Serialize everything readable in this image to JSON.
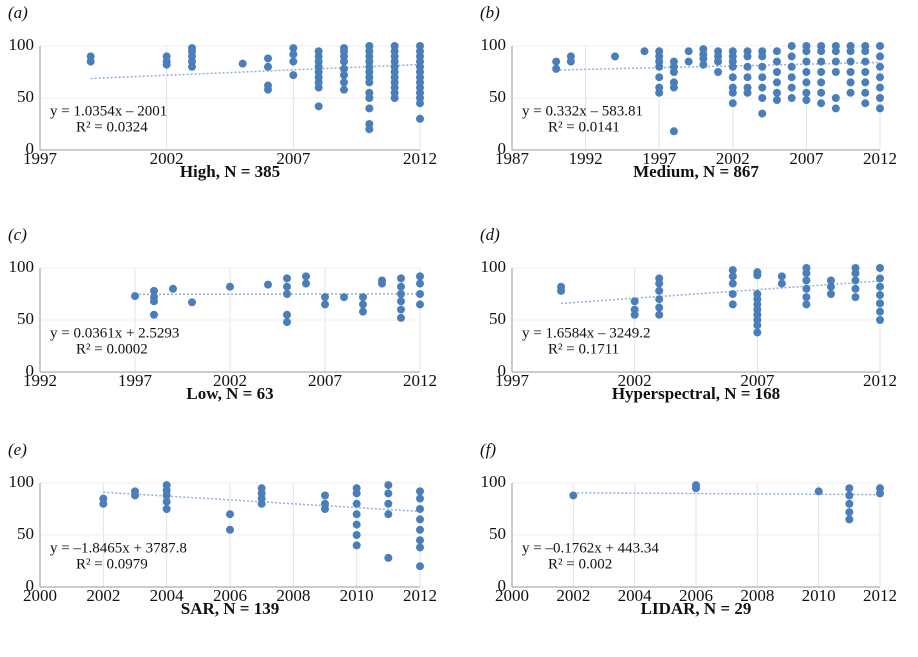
{
  "chart_data": [
    {
      "type": "scatter",
      "panel_label": "(a)",
      "title": "High, N = 385",
      "equation": "y = 1.0354x – 2001",
      "r_squared": "R² = 0.0324",
      "trendline": {
        "slope": 1.0354,
        "intercept": -2001
      },
      "color": "#4a7ebb",
      "grid": true,
      "xlim": [
        1997,
        2012
      ],
      "xticks": [
        1997,
        2002,
        2007,
        2012
      ],
      "ylim": [
        0,
        100
      ],
      "yticks": [
        0,
        50,
        100
      ],
      "x": [
        1999,
        1999,
        2002,
        2002,
        2002,
        2003,
        2003,
        2003,
        2003,
        2003,
        2005,
        2006,
        2006,
        2006,
        2006,
        2007,
        2007,
        2007,
        2007,
        2008,
        2008,
        2008,
        2008,
        2008,
        2008,
        2008,
        2008,
        2008,
        2009,
        2009,
        2009,
        2009,
        2009,
        2009,
        2009,
        2009,
        2010,
        2010,
        2010,
        2010,
        2010,
        2010,
        2010,
        2010,
        2010,
        2010,
        2010,
        2010,
        2010,
        2011,
        2011,
        2011,
        2011,
        2011,
        2011,
        2011,
        2011,
        2011,
        2011,
        2011,
        2012,
        2012,
        2012,
        2012,
        2012,
        2012,
        2012,
        2012,
        2012,
        2012,
        2012,
        2012,
        2012
      ],
      "values": [
        85,
        90,
        82,
        85,
        90,
        80,
        85,
        90,
        95,
        98,
        83,
        58,
        62,
        80,
        88,
        72,
        85,
        92,
        98,
        42,
        60,
        65,
        70,
        75,
        80,
        85,
        90,
        95,
        58,
        65,
        72,
        78,
        85,
        90,
        95,
        98,
        20,
        25,
        40,
        50,
        55,
        65,
        70,
        75,
        80,
        85,
        90,
        95,
        100,
        50,
        55,
        60,
        65,
        70,
        75,
        80,
        85,
        90,
        95,
        100,
        30,
        45,
        50,
        55,
        60,
        65,
        70,
        75,
        80,
        85,
        90,
        95,
        100
      ]
    },
    {
      "type": "scatter",
      "panel_label": "(b)",
      "title": "Medium, N = 867",
      "equation": "y = 0.332x – 583.81",
      "r_squared": "R² = 0.0141",
      "trendline": {
        "slope": 0.332,
        "intercept": -583.81
      },
      "color": "#4a7ebb",
      "grid": true,
      "xlim": [
        1987,
        2012
      ],
      "xticks": [
        1987,
        1992,
        1997,
        2002,
        2007,
        2012
      ],
      "ylim": [
        0,
        100
      ],
      "yticks": [
        0,
        50,
        100
      ],
      "x": [
        1990,
        1990,
        1991,
        1991,
        1994,
        1996,
        1997,
        1997,
        1997,
        1997,
        1997,
        1997,
        1997,
        1998,
        1998,
        1998,
        1998,
        1998,
        1998,
        1999,
        1999,
        2000,
        2000,
        2000,
        2000,
        2001,
        2001,
        2001,
        2001,
        2002,
        2002,
        2002,
        2002,
        2002,
        2002,
        2002,
        2002,
        2003,
        2003,
        2003,
        2003,
        2003,
        2003,
        2004,
        2004,
        2004,
        2004,
        2004,
        2004,
        2004,
        2005,
        2005,
        2005,
        2005,
        2005,
        2005,
        2006,
        2006,
        2006,
        2006,
        2006,
        2006,
        2007,
        2007,
        2007,
        2007,
        2007,
        2007,
        2007,
        2008,
        2008,
        2008,
        2008,
        2008,
        2008,
        2008,
        2009,
        2009,
        2009,
        2009,
        2009,
        2009,
        2010,
        2010,
        2010,
        2010,
        2010,
        2010,
        2011,
        2011,
        2011,
        2011,
        2011,
        2011,
        2011,
        2012,
        2012,
        2012,
        2012,
        2012,
        2012,
        2012
      ],
      "values": [
        78,
        85,
        85,
        90,
        90,
        95,
        55,
        60,
        70,
        80,
        85,
        90,
        95,
        18,
        60,
        65,
        75,
        80,
        85,
        85,
        95,
        82,
        88,
        92,
        97,
        75,
        85,
        90,
        95,
        45,
        55,
        60,
        70,
        80,
        85,
        90,
        95,
        55,
        60,
        70,
        80,
        90,
        95,
        35,
        50,
        60,
        70,
        80,
        90,
        95,
        48,
        55,
        65,
        75,
        85,
        95,
        50,
        60,
        70,
        80,
        90,
        100,
        48,
        55,
        65,
        75,
        85,
        95,
        100,
        45,
        55,
        65,
        75,
        85,
        95,
        100,
        40,
        50,
        75,
        85,
        95,
        100,
        55,
        65,
        75,
        85,
        95,
        100,
        45,
        55,
        65,
        75,
        85,
        95,
        100,
        40,
        50,
        60,
        70,
        80,
        90,
        100
      ]
    },
    {
      "type": "scatter",
      "panel_label": "(c)",
      "title": "Low, N = 63",
      "equation": "y = 0.0361x + 2.5293",
      "r_squared": "R² = 0.0002",
      "trendline": {
        "slope": 0.0361,
        "intercept": 2.5293
      },
      "color": "#4a7ebb",
      "grid": true,
      "xlim": [
        1992,
        2012
      ],
      "xticks": [
        1992,
        1997,
        2002,
        2007,
        2012
      ],
      "ylim": [
        0,
        100
      ],
      "yticks": [
        0,
        50,
        100
      ],
      "x": [
        1997,
        1998,
        1998,
        1998,
        1998,
        1999,
        2000,
        2002,
        2004,
        2005,
        2005,
        2005,
        2005,
        2005,
        2006,
        2006,
        2007,
        2007,
        2008,
        2009,
        2009,
        2009,
        2010,
        2010,
        2011,
        2011,
        2011,
        2011,
        2011,
        2011,
        2012,
        2012,
        2012,
        2012
      ],
      "values": [
        73,
        55,
        68,
        72,
        78,
        80,
        67,
        82,
        84,
        48,
        55,
        75,
        82,
        90,
        85,
        92,
        65,
        72,
        72,
        58,
        65,
        72,
        85,
        88,
        52,
        60,
        68,
        75,
        82,
        90,
        65,
        75,
        85,
        92
      ]
    },
    {
      "type": "scatter",
      "panel_label": "(d)",
      "title": "Hyperspectral, N = 168",
      "equation": "y = 1.6584x – 3249.2",
      "r_squared": "R² = 0.1711",
      "trendline": {
        "slope": 1.6584,
        "intercept": -3249.2
      },
      "color": "#4a7ebb",
      "grid": true,
      "xlim": [
        1997,
        2012
      ],
      "xticks": [
        1997,
        2002,
        2007,
        2012
      ],
      "ylim": [
        0,
        100
      ],
      "yticks": [
        0,
        50,
        100
      ],
      "x": [
        1999,
        1999,
        2002,
        2002,
        2002,
        2003,
        2003,
        2003,
        2003,
        2003,
        2003,
        2006,
        2006,
        2006,
        2006,
        2006,
        2007,
        2007,
        2007,
        2007,
        2007,
        2007,
        2007,
        2007,
        2007,
        2007,
        2008,
        2008,
        2009,
        2009,
        2009,
        2009,
        2009,
        2009,
        2010,
        2010,
        2010,
        2011,
        2011,
        2011,
        2011,
        2011,
        2012,
        2012,
        2012,
        2012,
        2012,
        2012,
        2012
      ],
      "values": [
        78,
        82,
        55,
        60,
        68,
        55,
        62,
        70,
        78,
        85,
        90,
        65,
        75,
        85,
        92,
        98,
        38,
        45,
        50,
        55,
        60,
        65,
        70,
        75,
        93,
        96,
        85,
        92,
        65,
        72,
        80,
        88,
        95,
        100,
        75,
        82,
        88,
        72,
        80,
        88,
        95,
        100,
        50,
        58,
        66,
        74,
        82,
        90,
        100
      ]
    },
    {
      "type": "scatter",
      "panel_label": "(e)",
      "title": "SAR, N = 139",
      "equation": "y = –1.8465x + 3787.8",
      "r_squared": "R² = 0.0979",
      "trendline": {
        "slope": -1.8465,
        "intercept": 3787.8
      },
      "color": "#4a7ebb",
      "grid": true,
      "xlim": [
        2000,
        2012
      ],
      "xticks": [
        2000,
        2002,
        2004,
        2006,
        2008,
        2010,
        2012
      ],
      "ylim": [
        0,
        100
      ],
      "yticks": [
        0,
        50,
        100
      ],
      "x": [
        2002,
        2002,
        2003,
        2003,
        2004,
        2004,
        2004,
        2004,
        2004,
        2006,
        2006,
        2007,
        2007,
        2007,
        2007,
        2009,
        2009,
        2009,
        2010,
        2010,
        2010,
        2010,
        2010,
        2010,
        2010,
        2011,
        2011,
        2011,
        2011,
        2011,
        2012,
        2012,
        2012,
        2012,
        2012,
        2012,
        2012,
        2012
      ],
      "values": [
        80,
        85,
        88,
        92,
        75,
        82,
        88,
        93,
        98,
        55,
        70,
        80,
        85,
        90,
        95,
        75,
        80,
        88,
        40,
        50,
        60,
        70,
        80,
        90,
        95,
        28,
        70,
        80,
        90,
        98,
        20,
        38,
        45,
        55,
        65,
        75,
        85,
        92
      ]
    },
    {
      "type": "scatter",
      "panel_label": "(f)",
      "title": "LIDAR, N = 29",
      "equation": "y = –0.1762x + 443.34",
      "r_squared": "R² = 0.002",
      "trendline": {
        "slope": -0.1762,
        "intercept": 443.34
      },
      "color": "#4a7ebb",
      "grid": true,
      "xlim": [
        2000,
        2012
      ],
      "xticks": [
        2000,
        2002,
        2004,
        2006,
        2008,
        2010,
        2012
      ],
      "ylim": [
        0,
        100
      ],
      "yticks": [
        0,
        50,
        100
      ],
      "x": [
        2002,
        2006,
        2006,
        2010,
        2011,
        2011,
        2011,
        2011,
        2011,
        2012,
        2012
      ],
      "values": [
        88,
        95,
        98,
        92,
        65,
        72,
        80,
        88,
        95,
        90,
        95
      ]
    }
  ]
}
